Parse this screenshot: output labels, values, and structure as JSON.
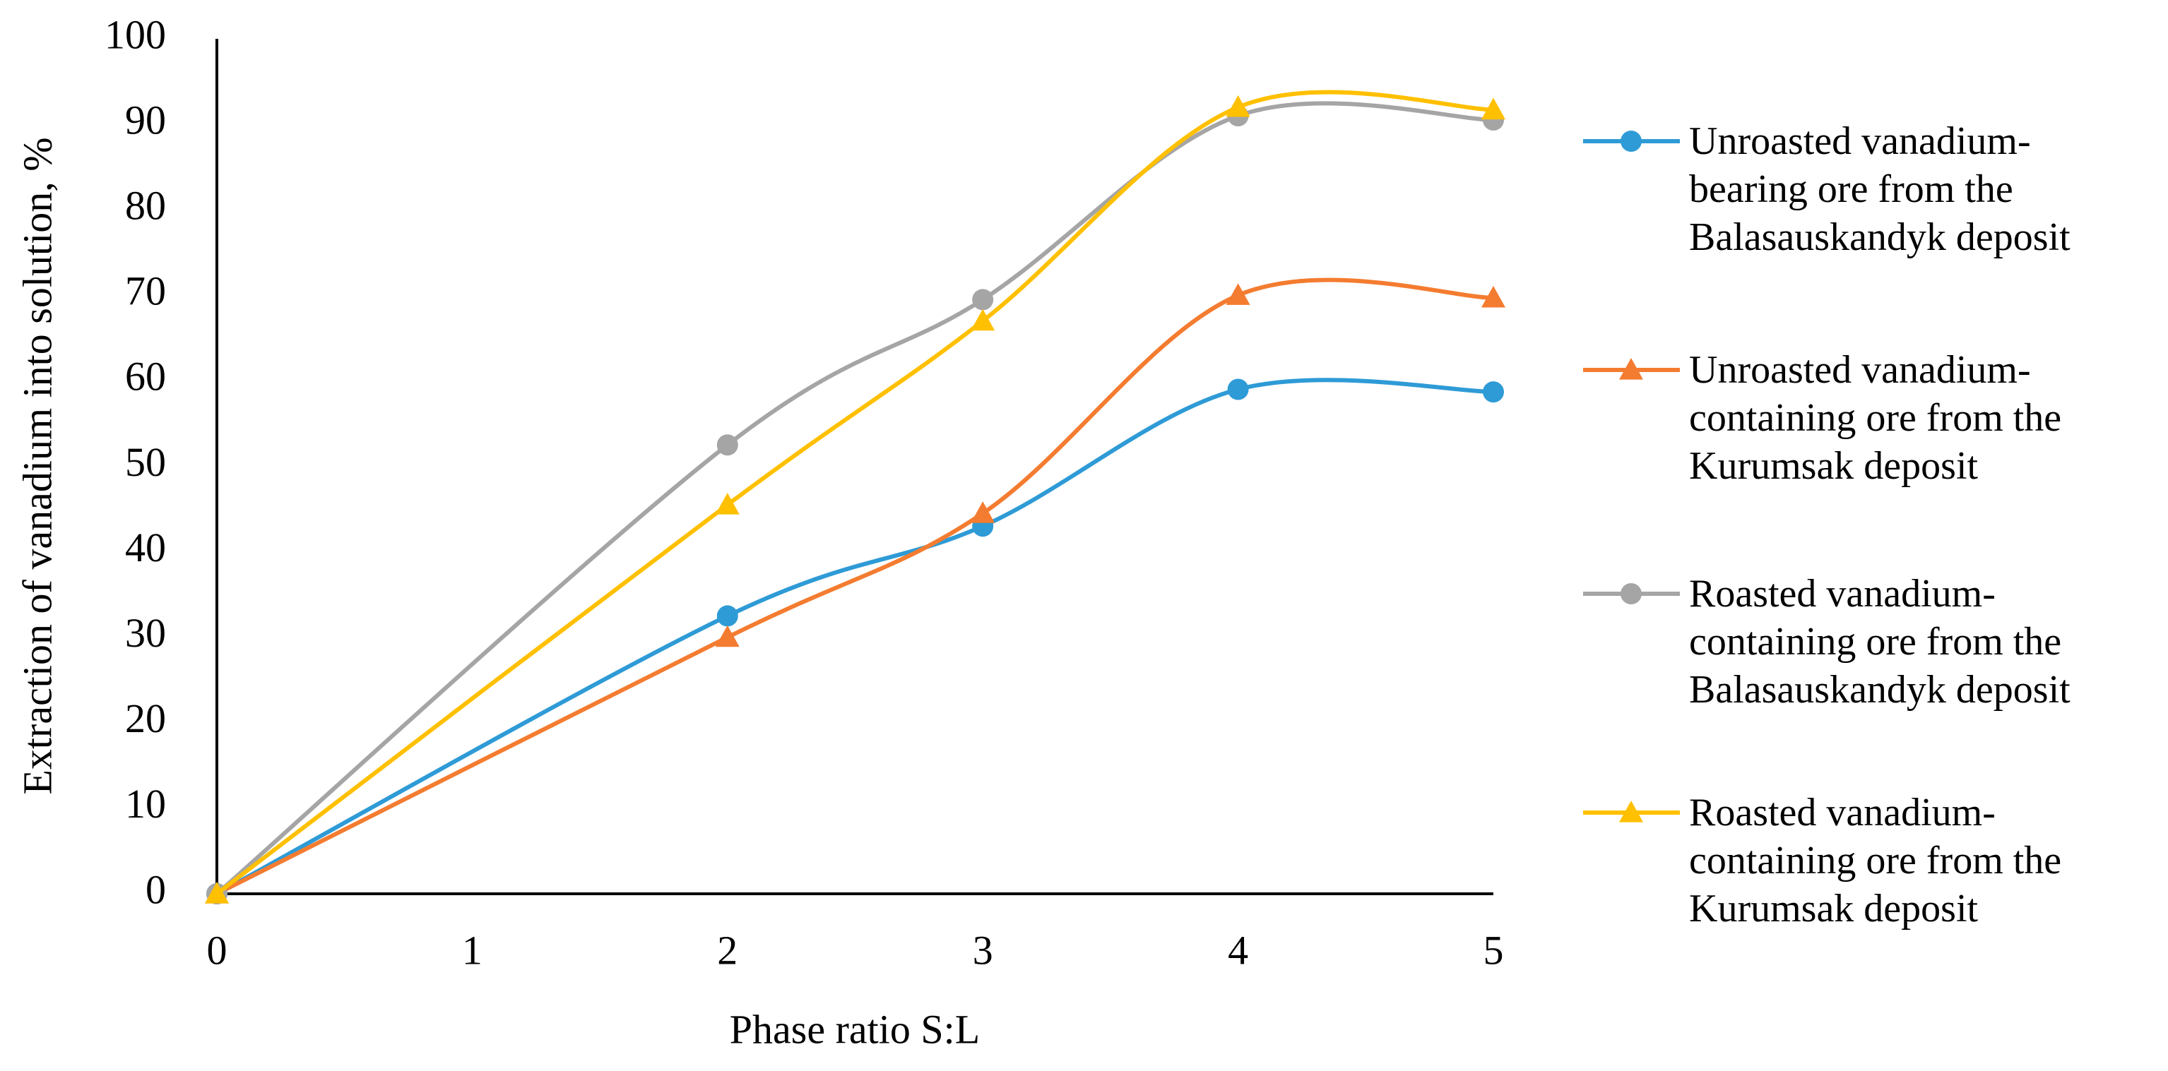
{
  "chart_data": {
    "type": "line",
    "y_label": "Extraction of vanadium into solution, %",
    "x_label": "Phase ratio S:L",
    "x": [
      0,
      2,
      3,
      4,
      5
    ],
    "xlim": [
      0,
      5
    ],
    "xticks": [
      0,
      1,
      2,
      3,
      4,
      5
    ],
    "ylim": [
      0,
      100
    ],
    "yticks": [
      0,
      10,
      20,
      30,
      40,
      50,
      60,
      70,
      80,
      90,
      100
    ],
    "smooth": true,
    "grid": false,
    "legend": "right",
    "series": [
      {
        "name": "Unroasted vanadium-bearing ore from the Balasauskandyk deposit",
        "color": "#2e9bd6",
        "marker": "circle",
        "values": [
          0,
          32.5,
          43,
          59,
          58.7
        ]
      },
      {
        "name": "Unroasted vanadium-containing ore from the Kurumsak deposit",
        "color": "#f47c30",
        "marker": "triangle",
        "values": [
          0,
          30,
          44.5,
          70,
          69.7
        ]
      },
      {
        "name": "Roasted vanadium-containing ore from the Balasauskandyk deposit",
        "color": "#a5a5a5",
        "marker": "circle",
        "values": [
          0,
          52.5,
          69.5,
          91,
          90.5
        ]
      },
      {
        "name": "Roasted vanadium-containing ore from the Kurumsak deposit",
        "color": "#ffc000",
        "marker": "triangle",
        "values": [
          0,
          45.5,
          67,
          92,
          91.7
        ]
      }
    ]
  }
}
